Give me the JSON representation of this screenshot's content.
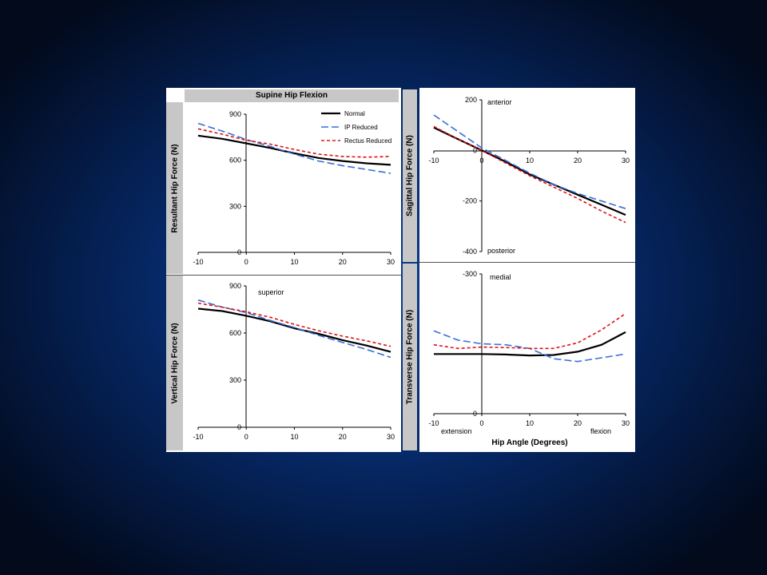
{
  "figure": {
    "title": "Supine Hip Flexion",
    "legend": [
      {
        "label": "Normal",
        "color": "#000000",
        "style": "solid"
      },
      {
        "label": "IP Reduced",
        "color": "#3a6fd8",
        "style": "long-dash"
      },
      {
        "label": "Rectus Reduced",
        "color": "#e01010",
        "style": "short-dash"
      }
    ],
    "xlabel_bottom": "Hip Angle (Degrees)"
  },
  "chart_data": [
    {
      "type": "line",
      "ylabel": "Resultant Hip Force (N)",
      "xlim": [
        -10,
        30
      ],
      "ylim": [
        0,
        900
      ],
      "xticks": [
        -10,
        0,
        10,
        20,
        30
      ],
      "yticks": [
        0,
        300,
        600,
        900
      ],
      "annotations": [],
      "legend_position": "top-right",
      "series": [
        {
          "name": "Normal",
          "x": [
            -10,
            -5,
            0,
            5,
            10,
            15,
            20,
            25,
            30
          ],
          "y": [
            760,
            740,
            710,
            680,
            645,
            615,
            595,
            580,
            570
          ]
        },
        {
          "name": "IP Reduced",
          "x": [
            -10,
            -5,
            0,
            5,
            10,
            15,
            20,
            25,
            30
          ],
          "y": [
            840,
            790,
            735,
            690,
            640,
            595,
            565,
            540,
            515
          ]
        },
        {
          "name": "Rectus Reduced",
          "x": [
            -10,
            -5,
            0,
            5,
            10,
            15,
            20,
            25,
            30
          ],
          "y": [
            805,
            770,
            730,
            705,
            670,
            640,
            625,
            620,
            625
          ]
        }
      ]
    },
    {
      "type": "line",
      "ylabel": "Vertical Hip Force (N)",
      "xlim": [
        -10,
        30
      ],
      "ylim": [
        0,
        900
      ],
      "xticks": [
        -10,
        0,
        10,
        20,
        30
      ],
      "yticks": [
        0,
        300,
        600,
        900
      ],
      "annotations": [
        {
          "text": "superior"
        }
      ],
      "series": [
        {
          "name": "Normal",
          "x": [
            -10,
            -5,
            0,
            5,
            10,
            15,
            20,
            25,
            30
          ],
          "y": [
            755,
            740,
            710,
            675,
            630,
            595,
            555,
            520,
            480
          ]
        },
        {
          "name": "IP Reduced",
          "x": [
            -10,
            -5,
            0,
            5,
            10,
            15,
            20,
            25,
            30
          ],
          "y": [
            810,
            765,
            730,
            680,
            635,
            585,
            540,
            495,
            445
          ]
        },
        {
          "name": "Rectus Reduced",
          "x": [
            -10,
            -5,
            0,
            5,
            10,
            15,
            20,
            25,
            30
          ],
          "y": [
            790,
            765,
            735,
            700,
            655,
            615,
            580,
            550,
            515
          ]
        }
      ]
    },
    {
      "type": "line",
      "ylabel": "Sagittal Hip Force (N)",
      "xlim": [
        -10,
        30
      ],
      "ylim": [
        -400,
        200
      ],
      "xticks": [
        -10,
        0,
        10,
        20,
        30
      ],
      "yticks": [
        -400,
        -200,
        0,
        200
      ],
      "annotations": [
        {
          "text": "anterior"
        },
        {
          "text": "posterior"
        }
      ],
      "series": [
        {
          "name": "Normal",
          "x": [
            -10,
            -5,
            0,
            5,
            10,
            15,
            20,
            25,
            30
          ],
          "y": [
            90,
            45,
            0,
            -45,
            -95,
            -135,
            -175,
            -215,
            -255
          ]
        },
        {
          "name": "IP Reduced",
          "x": [
            -10,
            -5,
            0,
            5,
            10,
            15,
            20,
            25,
            30
          ],
          "y": [
            140,
            75,
            10,
            -40,
            -90,
            -135,
            -170,
            -200,
            -230
          ]
        },
        {
          "name": "Rectus Reduced",
          "x": [
            -10,
            -5,
            0,
            5,
            10,
            15,
            20,
            25,
            30
          ],
          "y": [
            95,
            45,
            0,
            -50,
            -100,
            -145,
            -190,
            -240,
            -285
          ]
        }
      ]
    },
    {
      "type": "line",
      "ylabel": "Transverse Hip Force (N)",
      "xlabel": "Hip Angle (Degrees)",
      "xlim": [
        -10,
        30
      ],
      "ylim": [
        -300,
        0
      ],
      "y_inverted": true,
      "xticks": [
        -10,
        0,
        10,
        20,
        30
      ],
      "yticks": [
        -300,
        0
      ],
      "annotations": [
        {
          "text": "medial"
        },
        {
          "text": "extension"
        },
        {
          "text": "flexion"
        }
      ],
      "series": [
        {
          "name": "Normal",
          "x": [
            -10,
            -5,
            0,
            5,
            10,
            15,
            20,
            25,
            30
          ],
          "y": [
            -128,
            -128,
            -128,
            -127,
            -125,
            -126,
            -133,
            -148,
            -175
          ]
        },
        {
          "name": "IP Reduced",
          "x": [
            -10,
            -5,
            0,
            5,
            10,
            15,
            20,
            25,
            30
          ],
          "y": [
            -178,
            -158,
            -150,
            -148,
            -140,
            -118,
            -112,
            -120,
            -128
          ]
        },
        {
          "name": "Rectus Reduced",
          "x": [
            -10,
            -5,
            0,
            5,
            10,
            15,
            20,
            25,
            30
          ],
          "y": [
            -148,
            -140,
            -143,
            -142,
            -140,
            -140,
            -152,
            -180,
            -215
          ]
        }
      ]
    }
  ]
}
